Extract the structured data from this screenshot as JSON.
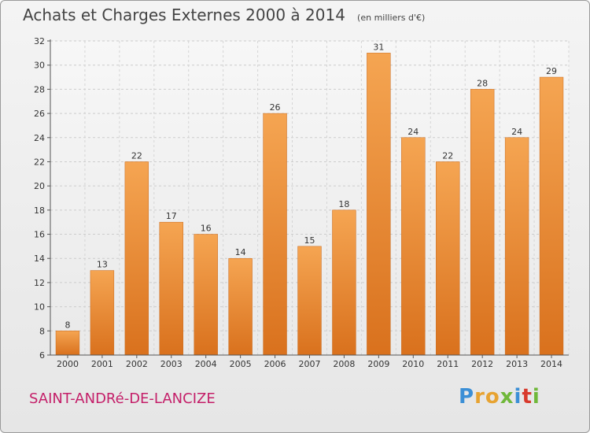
{
  "header": {
    "title": "Achats et Charges Externes 2000 à 2014",
    "unit": "(en milliers d'€)"
  },
  "footer": {
    "commune": "SAINT-ANDRé-DE-LANCIZE",
    "logo": [
      "P",
      "r",
      "o",
      "x",
      "i",
      "t",
      "i"
    ]
  },
  "colors": {
    "bar_top": "#f5a552",
    "bar_bottom": "#d9711d",
    "commune": "#c41f69"
  },
  "chart_data": {
    "type": "bar",
    "title": "Achats et Charges Externes 2000 à 2014",
    "subtitle": "(en milliers d'€)",
    "categories": [
      "2000",
      "2001",
      "2002",
      "2003",
      "2004",
      "2005",
      "2006",
      "2007",
      "2008",
      "2009",
      "2010",
      "2011",
      "2012",
      "2013",
      "2014"
    ],
    "values": [
      8,
      13,
      22,
      17,
      16,
      14,
      26,
      15,
      18,
      31,
      24,
      22,
      28,
      24,
      29
    ],
    "ylim": [
      6,
      32
    ],
    "yticks": [
      6,
      8,
      10,
      12,
      14,
      16,
      18,
      20,
      22,
      24,
      26,
      28,
      30,
      32
    ],
    "grid": true
  }
}
